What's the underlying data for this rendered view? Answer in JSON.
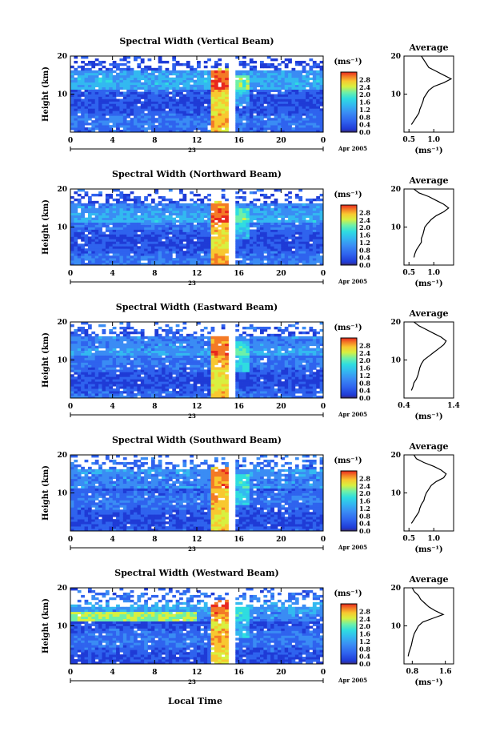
{
  "figure": {
    "local_time_label": "Local Time",
    "date_label": "Apr 2005",
    "day_label": "23",
    "height_axis_label": "Height (km)",
    "colorbar_unit": "(ms⁻¹)",
    "average_title": "Average",
    "average_unit": "(ms⁻¹)"
  },
  "colors": {
    "colormap": [
      "#3b2a6e",
      "#1f3bd6",
      "#2f63ee",
      "#3a8cf4",
      "#33b9f0",
      "#2fdde0",
      "#6ef0a8",
      "#d8f040",
      "#f8c830",
      "#f47a26",
      "#e8281e"
    ],
    "gap": "#ffffff",
    "line": "#000000"
  },
  "chart_data": [
    {
      "type": "heatmap",
      "title": "Spectral Width (Vertical Beam)",
      "x": {
        "range": [
          0,
          24
        ],
        "ticks": [
          "0",
          "4",
          "8",
          "12",
          "16",
          "20",
          "0"
        ]
      },
      "y": {
        "range": [
          0,
          20
        ],
        "ticks": [
          "10",
          "20"
        ]
      },
      "colorbar": {
        "ticks": [
          "0.0",
          "0.4",
          "0.8",
          "1.2",
          "1.6",
          "2.0",
          "2.4",
          "2.8"
        ],
        "range": [
          0,
          3.2
        ]
      },
      "profile": {
        "type": "line",
        "xticks": [
          "0.5",
          "1.0"
        ],
        "xlim": [
          0.4,
          1.4
        ],
        "heights": [
          2,
          3,
          4,
          5,
          6,
          7,
          8,
          9,
          10,
          11,
          12,
          13,
          14,
          15,
          16,
          17,
          18,
          19,
          20
        ],
        "values": [
          0.55,
          0.6,
          0.65,
          0.7,
          0.72,
          0.75,
          0.78,
          0.8,
          0.85,
          0.9,
          1.0,
          1.2,
          1.35,
          1.2,
          1.05,
          0.9,
          0.85,
          0.8,
          0.75
        ]
      }
    },
    {
      "type": "heatmap",
      "title": "Spectral Width (Northward Beam)",
      "x": {
        "range": [
          0,
          24
        ],
        "ticks": [
          "0",
          "4",
          "8",
          "12",
          "16",
          "20",
          "0"
        ]
      },
      "y": {
        "range": [
          0,
          20
        ],
        "ticks": [
          "10",
          "20"
        ]
      },
      "colorbar": {
        "ticks": [
          "0.0",
          "0.4",
          "0.8",
          "1.2",
          "1.6",
          "2.0",
          "2.4",
          "2.8"
        ],
        "range": [
          0,
          3.2
        ]
      },
      "profile": {
        "type": "line",
        "xticks": [
          "0.5",
          "1.0"
        ],
        "xlim": [
          0.4,
          1.4
        ],
        "heights": [
          2,
          3,
          4,
          5,
          6,
          7,
          8,
          9,
          10,
          11,
          12,
          13,
          14,
          15,
          16,
          17,
          18,
          19,
          20
        ],
        "values": [
          0.6,
          0.62,
          0.65,
          0.7,
          0.75,
          0.75,
          0.78,
          0.8,
          0.82,
          0.88,
          0.95,
          1.05,
          1.2,
          1.3,
          1.2,
          1.05,
          0.9,
          0.7,
          0.6
        ]
      }
    },
    {
      "type": "heatmap",
      "title": "Spectral Width (Eastward Beam)",
      "x": {
        "range": [
          0,
          24
        ],
        "ticks": [
          "0",
          "4",
          "8",
          "12",
          "16",
          "20",
          "0"
        ]
      },
      "y": {
        "range": [
          0,
          20
        ],
        "ticks": [
          "10",
          "20"
        ]
      },
      "colorbar": {
        "ticks": [
          "0.0",
          "0.4",
          "0.8",
          "1.2",
          "1.6",
          "2.0",
          "2.4",
          "2.8"
        ],
        "range": [
          0,
          3.2
        ]
      },
      "profile": {
        "type": "line",
        "xticks": [
          "0.4",
          "1.4"
        ],
        "xlim": [
          0.4,
          1.4
        ],
        "heights": [
          2,
          3,
          4,
          5,
          6,
          7,
          8,
          9,
          10,
          11,
          12,
          13,
          14,
          15,
          16,
          17,
          18,
          19,
          20
        ],
        "values": [
          0.55,
          0.58,
          0.6,
          0.65,
          0.68,
          0.7,
          0.72,
          0.75,
          0.8,
          0.9,
          1.0,
          1.1,
          1.2,
          1.25,
          1.15,
          1.0,
          0.85,
          0.7,
          0.6
        ]
      }
    },
    {
      "type": "heatmap",
      "title": "Spectral Width (Southward Beam)",
      "x": {
        "range": [
          0,
          24
        ],
        "ticks": [
          "0",
          "4",
          "8",
          "12",
          "16",
          "20",
          "0"
        ]
      },
      "y": {
        "range": [
          0,
          20
        ],
        "ticks": [
          "10",
          "20"
        ]
      },
      "colorbar": {
        "ticks": [
          "0.0",
          "0.4",
          "0.8",
          "1.2",
          "1.6",
          "2.0",
          "2.4",
          "2.8"
        ],
        "range": [
          0,
          3.2
        ]
      },
      "profile": {
        "type": "line",
        "xticks": [
          "0.5",
          "1.0"
        ],
        "xlim": [
          0.4,
          1.4
        ],
        "heights": [
          2,
          3,
          4,
          5,
          6,
          7,
          8,
          9,
          10,
          11,
          12,
          13,
          14,
          15,
          16,
          17,
          18,
          19,
          20
        ],
        "values": [
          0.55,
          0.6,
          0.65,
          0.7,
          0.72,
          0.75,
          0.8,
          0.82,
          0.85,
          0.9,
          0.95,
          1.05,
          1.2,
          1.25,
          1.15,
          1.0,
          0.8,
          0.65,
          0.6
        ]
      }
    },
    {
      "type": "heatmap",
      "title": "Spectral Width (Westward Beam)",
      "x": {
        "range": [
          0,
          24
        ],
        "ticks": [
          "0",
          "4",
          "8",
          "12",
          "16",
          "20",
          "0"
        ]
      },
      "y": {
        "range": [
          0,
          20
        ],
        "ticks": [
          "10",
          "20"
        ]
      },
      "colorbar": {
        "ticks": [
          "0.0",
          "0.4",
          "0.8",
          "1.2",
          "1.6",
          "2.0",
          "2.4",
          "2.8"
        ],
        "range": [
          0,
          3.2
        ]
      },
      "profile": {
        "type": "line",
        "xticks": [
          "0.8",
          "1.6"
        ],
        "xlim": [
          0.6,
          1.8
        ],
        "heights": [
          2,
          3,
          4,
          5,
          6,
          7,
          8,
          9,
          10,
          11,
          12,
          13,
          14,
          15,
          16,
          17,
          18,
          19,
          20
        ],
        "values": [
          0.7,
          0.72,
          0.75,
          0.78,
          0.8,
          0.82,
          0.85,
          0.9,
          0.95,
          1.05,
          1.3,
          1.55,
          1.35,
          1.2,
          1.1,
          1.0,
          0.95,
          0.85,
          0.8
        ]
      }
    }
  ]
}
